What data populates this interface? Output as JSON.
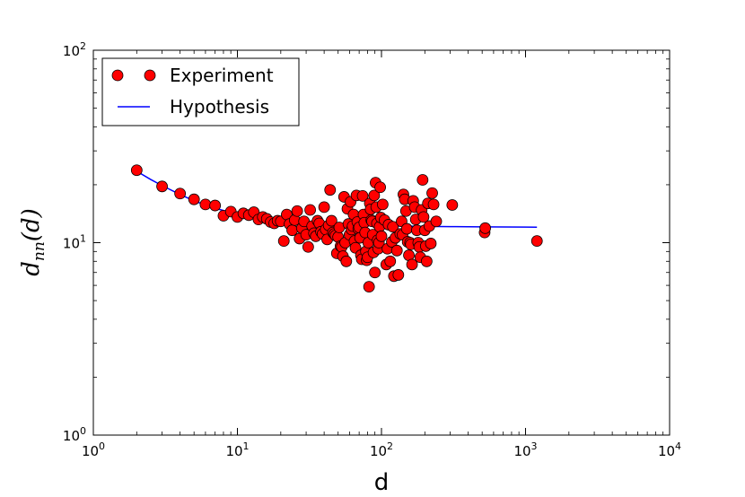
{
  "chart_data": {
    "type": "scatter",
    "title": "",
    "xlabel": "d",
    "ylabel": {
      "main": "d",
      "sub": "nn",
      "arg": "(d)"
    },
    "xscale": "log",
    "yscale": "log",
    "xlim": [
      1,
      10000
    ],
    "ylim": [
      1,
      100
    ],
    "x_ticks": [
      {
        "value": 1,
        "base": "10",
        "exp": "0"
      },
      {
        "value": 10,
        "base": "10",
        "exp": "1"
      },
      {
        "value": 100,
        "base": "10",
        "exp": "2"
      },
      {
        "value": 1000,
        "base": "10",
        "exp": "3"
      },
      {
        "value": 10000,
        "base": "10",
        "exp": "4"
      }
    ],
    "y_ticks": [
      {
        "value": 1,
        "base": "10",
        "exp": "0"
      },
      {
        "value": 10,
        "base": "10",
        "exp": "1"
      },
      {
        "value": 100,
        "base": "10",
        "exp": "2"
      }
    ],
    "legend_position": "top-left",
    "colors": {
      "experiment_fill": "#ff0000",
      "experiment_edge": "#000000",
      "hypothesis": "#0000ff"
    },
    "series": [
      {
        "name": "Experiment",
        "kind": "scatter",
        "points": [
          [
            2,
            23.8
          ],
          [
            3,
            19.6
          ],
          [
            4,
            18.0
          ],
          [
            5,
            16.8
          ],
          [
            6,
            15.8
          ],
          [
            7,
            15.6
          ],
          [
            8,
            13.8
          ],
          [
            9,
            14.5
          ],
          [
            10,
            13.6
          ],
          [
            11,
            14.2
          ],
          [
            12,
            13.9
          ],
          [
            13,
            14.4
          ],
          [
            14,
            13.2
          ],
          [
            15,
            13.6
          ],
          [
            16,
            13.3
          ],
          [
            17,
            12.8
          ],
          [
            18,
            12.6
          ],
          [
            19,
            13.0
          ],
          [
            20,
            12.9
          ],
          [
            21,
            10.2
          ],
          [
            22,
            14.0
          ],
          [
            23,
            12.5
          ],
          [
            24,
            11.6
          ],
          [
            25,
            13.1
          ],
          [
            26,
            14.6
          ],
          [
            27,
            10.5
          ],
          [
            28,
            11.9
          ],
          [
            29,
            12.9
          ],
          [
            30,
            11.0
          ],
          [
            31,
            9.5
          ],
          [
            32,
            14.8
          ],
          [
            33,
            12.2
          ],
          [
            34,
            11.2
          ],
          [
            35,
            10.8
          ],
          [
            36,
            13.0
          ],
          [
            37,
            12.6
          ],
          [
            38,
            11.4
          ],
          [
            39,
            11.1
          ],
          [
            40,
            15.3
          ],
          [
            41,
            11.7
          ],
          [
            42,
            10.4
          ],
          [
            43,
            12.3
          ],
          [
            44,
            18.8
          ],
          [
            45,
            13.0
          ],
          [
            46,
            11.3
          ],
          [
            47,
            11.1
          ],
          [
            48,
            10.9
          ],
          [
            49,
            8.8
          ],
          [
            50,
            10.7
          ],
          [
            51,
            12.0
          ],
          [
            52,
            9.6
          ],
          [
            53,
            9.5
          ],
          [
            54,
            8.5
          ],
          [
            55,
            17.3
          ],
          [
            56,
            10.0
          ],
          [
            57,
            8.0
          ],
          [
            58,
            15.0
          ],
          [
            59,
            12.5
          ],
          [
            60,
            11.0
          ],
          [
            61,
            16.3
          ],
          [
            62,
            11.7
          ],
          [
            63,
            12.2
          ],
          [
            64,
            14.0
          ],
          [
            65,
            10.2
          ],
          [
            66,
            9.4
          ],
          [
            67,
            17.6
          ],
          [
            68,
            12.8
          ],
          [
            69,
            11.8
          ],
          [
            70,
            12.0
          ],
          [
            71,
            10.6
          ],
          [
            72,
            8.6
          ],
          [
            73,
            8.2
          ],
          [
            74,
            17.5
          ],
          [
            75,
            14.0
          ],
          [
            76,
            12.7
          ],
          [
            77,
            11.3
          ],
          [
            78,
            9.0
          ],
          [
            79,
            8.1
          ],
          [
            80,
            8.4
          ],
          [
            81,
            10.0
          ],
          [
            82,
            5.9
          ],
          [
            83,
            16.0
          ],
          [
            84,
            14.9
          ],
          [
            85,
            13.1
          ],
          [
            86,
            12.9
          ],
          [
            87,
            11.0
          ],
          [
            88,
            8.9
          ],
          [
            89,
            17.6
          ],
          [
            90,
            7.0
          ],
          [
            91,
            20.5
          ],
          [
            92,
            15.3
          ],
          [
            93,
            12.6
          ],
          [
            94,
            10.3
          ],
          [
            95,
            9.3
          ],
          [
            96,
            10.0
          ],
          [
            97,
            12.1
          ],
          [
            98,
            19.4
          ],
          [
            99,
            13.5
          ],
          [
            100,
            10.8
          ],
          [
            102,
            15.8
          ],
          [
            105,
            13.1
          ],
          [
            108,
            7.7
          ],
          [
            110,
            9.3
          ],
          [
            112,
            12.4
          ],
          [
            115,
            8.0
          ],
          [
            118,
            10.1
          ],
          [
            120,
            12.1
          ],
          [
            122,
            6.7
          ],
          [
            125,
            10.6
          ],
          [
            128,
            9.1
          ],
          [
            131,
            6.8
          ],
          [
            135,
            11.1
          ],
          [
            138,
            12.9
          ],
          [
            140,
            11.0
          ],
          [
            142,
            17.8
          ],
          [
            145,
            16.8
          ],
          [
            148,
            14.6
          ],
          [
            150,
            11.8
          ],
          [
            152,
            10.1
          ],
          [
            155,
            8.6
          ],
          [
            158,
            10.0
          ],
          [
            160,
            9.8
          ],
          [
            163,
            7.7
          ],
          [
            166,
            16.5
          ],
          [
            170,
            15.3
          ],
          [
            173,
            13.2
          ],
          [
            176,
            11.6
          ],
          [
            180,
            10.0
          ],
          [
            183,
            9.5
          ],
          [
            186,
            8.4
          ],
          [
            190,
            14.8
          ],
          [
            193,
            21.2
          ],
          [
            196,
            13.6
          ],
          [
            200,
            11.6
          ],
          [
            203,
            9.6
          ],
          [
            206,
            8.0
          ],
          [
            210,
            16.0
          ],
          [
            215,
            12.2
          ],
          [
            220,
            9.9
          ],
          [
            225,
            18.1
          ],
          [
            230,
            15.8
          ],
          [
            240,
            12.9
          ],
          [
            310,
            15.7
          ],
          [
            520,
            11.3
          ],
          [
            525,
            11.9
          ],
          [
            1200,
            10.2
          ]
        ]
      },
      {
        "name": "Hypothesis",
        "kind": "line",
        "x": [
          2,
          2.5,
          3,
          4,
          5,
          6,
          7,
          8,
          10,
          13,
          16,
          20,
          25,
          30,
          40,
          50,
          60,
          70,
          80,
          100,
          130,
          160,
          200,
          300,
          400,
          500,
          700,
          1000,
          1200
        ],
        "y": [
          23.5,
          21.3,
          19.8,
          17.8,
          16.5,
          15.7,
          15.1,
          14.7,
          14.1,
          13.6,
          13.3,
          13.0,
          12.8,
          12.7,
          12.5,
          12.4,
          12.35,
          12.3,
          12.28,
          12.25,
          12.2,
          12.18,
          12.15,
          12.12,
          12.1,
          12.08,
          12.06,
          12.05,
          12.04
        ]
      }
    ]
  }
}
